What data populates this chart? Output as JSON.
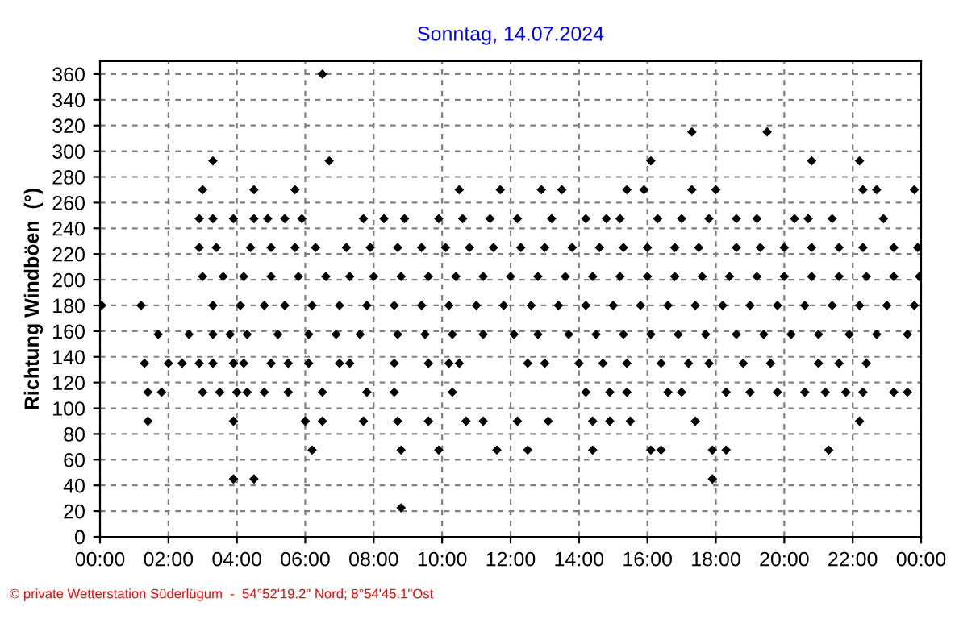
{
  "chart_data": {
    "type": "scatter",
    "title": "Sonntag, 14.07.2024",
    "ylabel": "Richtung Windböen  (°)",
    "annotations": [
      "© private Wetterstation Süderlügum  -  54°52'19.2\" Nord; 8°54'45.1\"Ost"
    ],
    "series": [
      {
        "color": "#000000",
        "x": [
          6.5,
          17.3,
          19.5,
          3.3,
          6.7,
          16.1,
          20.8,
          22.2,
          3.0,
          4.5,
          5.7,
          10.5,
          11.7,
          12.9,
          13.5,
          15.4,
          15.9,
          17.3,
          18.0,
          22.3,
          22.7,
          23.8,
          2.9,
          3.3,
          3.9,
          4.5,
          4.9,
          5.4,
          5.9,
          7.7,
          8.3,
          8.9,
          9.9,
          10.6,
          11.4,
          12.2,
          13.2,
          14.2,
          14.8,
          15.2,
          16.3,
          17.0,
          17.8,
          18.6,
          19.2,
          20.3,
          20.7,
          21.4,
          22.9,
          2.9,
          3.4,
          4.4,
          5.0,
          5.7,
          6.3,
          7.2,
          7.9,
          8.7,
          9.4,
          10.1,
          10.8,
          11.5,
          12.3,
          13.0,
          13.8,
          14.6,
          15.3,
          16.0,
          16.8,
          17.5,
          18.6,
          19.3,
          20.0,
          20.8,
          21.6,
          22.3,
          23.2,
          23.9,
          3.0,
          3.6,
          4.2,
          5.0,
          5.8,
          6.6,
          7.3,
          8.0,
          8.8,
          9.6,
          10.4,
          11.2,
          12.0,
          12.8,
          13.6,
          14.4,
          15.2,
          16.0,
          16.8,
          17.6,
          18.4,
          19.2,
          20.0,
          20.8,
          21.6,
          22.4,
          23.2,
          23.95,
          0.05,
          1.2,
          3.3,
          4.1,
          4.8,
          5.4,
          6.2,
          7.0,
          7.8,
          8.6,
          9.4,
          10.2,
          11.0,
          11.8,
          12.6,
          13.4,
          14.2,
          15.0,
          15.8,
          16.6,
          17.4,
          18.2,
          19.0,
          19.8,
          20.6,
          21.4,
          22.2,
          23.0,
          23.8,
          1.7,
          2.6,
          3.3,
          3.8,
          4.3,
          5.2,
          6.1,
          6.9,
          7.6,
          8.7,
          9.5,
          10.3,
          11.2,
          12.1,
          12.8,
          13.7,
          14.5,
          15.3,
          16.1,
          16.9,
          17.7,
          18.6,
          19.4,
          20.2,
          21.0,
          21.9,
          22.7,
          23.6,
          1.3,
          2.0,
          2.4,
          2.9,
          3.3,
          3.9,
          4.2,
          5.0,
          5.5,
          6.1,
          7.0,
          7.3,
          8.6,
          9.6,
          10.2,
          10.5,
          12.5,
          13.0,
          14.0,
          14.7,
          15.4,
          16.4,
          17.2,
          17.8,
          18.8,
          19.6,
          21.0,
          21.6,
          22.4,
          1.4,
          1.8,
          3.0,
          3.5,
          4.0,
          4.3,
          4.8,
          5.5,
          6.5,
          7.8,
          8.6,
          10.3,
          14.2,
          14.9,
          15.4,
          16.6,
          17.0,
          18.3,
          19.0,
          19.8,
          20.6,
          21.2,
          21.8,
          22.3,
          23.2,
          23.6,
          1.4,
          3.9,
          6.0,
          6.5,
          7.7,
          8.7,
          9.6,
          10.7,
          11.2,
          12.2,
          13.1,
          14.4,
          14.9,
          15.5,
          17.4,
          22.2,
          6.2,
          8.8,
          9.9,
          11.6,
          12.5,
          14.4,
          16.1,
          16.4,
          17.9,
          18.3,
          21.3,
          3.9,
          4.5,
          17.9,
          8.8
        ],
        "values": [
          360,
          315,
          315,
          292.5,
          292.5,
          292.5,
          292.5,
          292.5,
          270,
          270,
          270,
          270,
          270,
          270,
          270,
          270,
          270,
          270,
          270,
          270,
          270,
          270,
          247.5,
          247.5,
          247.5,
          247.5,
          247.5,
          247.5,
          247.5,
          247.5,
          247.5,
          247.5,
          247.5,
          247.5,
          247.5,
          247.5,
          247.5,
          247.5,
          247.5,
          247.5,
          247.5,
          247.5,
          247.5,
          247.5,
          247.5,
          247.5,
          247.5,
          247.5,
          247.5,
          225,
          225,
          225,
          225,
          225,
          225,
          225,
          225,
          225,
          225,
          225,
          225,
          225,
          225,
          225,
          225,
          225,
          225,
          225,
          225,
          225,
          225,
          225,
          225,
          225,
          225,
          225,
          225,
          225,
          202.5,
          202.5,
          202.5,
          202.5,
          202.5,
          202.5,
          202.5,
          202.5,
          202.5,
          202.5,
          202.5,
          202.5,
          202.5,
          202.5,
          202.5,
          202.5,
          202.5,
          202.5,
          202.5,
          202.5,
          202.5,
          202.5,
          202.5,
          202.5,
          202.5,
          202.5,
          202.5,
          202.5,
          180,
          180,
          180,
          180,
          180,
          180,
          180,
          180,
          180,
          180,
          180,
          180,
          180,
          180,
          180,
          180,
          180,
          180,
          180,
          180,
          180,
          180,
          180,
          180,
          180,
          180,
          180,
          180,
          180,
          157.5,
          157.5,
          157.5,
          157.5,
          157.5,
          157.5,
          157.5,
          157.5,
          157.5,
          157.5,
          157.5,
          157.5,
          157.5,
          157.5,
          157.5,
          157.5,
          157.5,
          157.5,
          157.5,
          157.5,
          157.5,
          157.5,
          157.5,
          157.5,
          157.5,
          157.5,
          157.5,
          157.5,
          135,
          135,
          135,
          135,
          135,
          135,
          135,
          135,
          135,
          135,
          135,
          135,
          135,
          135,
          135,
          135,
          135,
          135,
          135,
          135,
          135,
          135,
          135,
          135,
          135,
          135,
          135,
          135,
          135,
          112.5,
          112.5,
          112.5,
          112.5,
          112.5,
          112.5,
          112.5,
          112.5,
          112.5,
          112.5,
          112.5,
          112.5,
          112.5,
          112.5,
          112.5,
          112.5,
          112.5,
          112.5,
          112.5,
          112.5,
          112.5,
          112.5,
          112.5,
          112.5,
          112.5,
          112.5,
          90,
          90,
          90,
          90,
          90,
          90,
          90,
          90,
          90,
          90,
          90,
          90,
          90,
          90,
          90,
          90,
          67.5,
          67.5,
          67.5,
          67.5,
          67.5,
          67.5,
          67.5,
          67.5,
          67.5,
          67.5,
          67.5,
          45,
          45,
          45,
          22.5
        ]
      }
    ],
    "xlim": [
      0,
      24
    ],
    "xticks": [
      {
        "value": 0,
        "label": "00:00"
      },
      {
        "value": 2,
        "label": "02:00"
      },
      {
        "value": 4,
        "label": "04:00"
      },
      {
        "value": 6,
        "label": "06:00"
      },
      {
        "value": 8,
        "label": "08:00"
      },
      {
        "value": 10,
        "label": "10:00"
      },
      {
        "value": 12,
        "label": "12:00"
      },
      {
        "value": 14,
        "label": "14:00"
      },
      {
        "value": 16,
        "label": "16:00"
      },
      {
        "value": 18,
        "label": "18:00"
      },
      {
        "value": 20,
        "label": "20:00"
      },
      {
        "value": 22,
        "label": "22:00"
      },
      {
        "value": 24,
        "label": "00:00"
      }
    ],
    "ylim": [
      0,
      370
    ],
    "yticks": [
      0,
      20,
      40,
      60,
      80,
      100,
      120,
      140,
      160,
      180,
      200,
      220,
      240,
      260,
      280,
      300,
      320,
      340,
      360
    ],
    "grid": true,
    "marker": "diamond",
    "legend": false
  }
}
